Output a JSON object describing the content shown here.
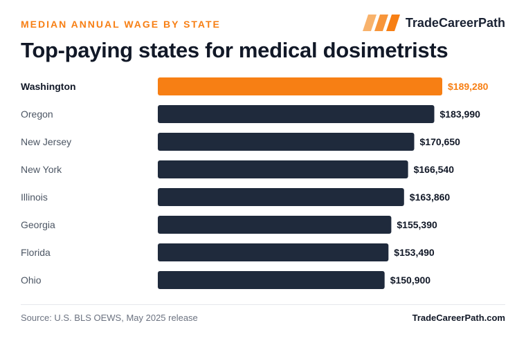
{
  "header": {
    "kicker": "MEDIAN ANNUAL WAGE BY STATE",
    "brand": "TradeCareerPath",
    "title": "Top-paying states for medical dosimetrists"
  },
  "footer": {
    "source": "Source: U.S. BLS OEWS, May 2025 release",
    "site": "TradeCareerPath.com"
  },
  "colors": {
    "highlight": "#f77f14",
    "bar": "#1f2a3c",
    "label_default": "#4b5563",
    "label_highlight": "#111827",
    "value_default": "#111827"
  },
  "chart_data": {
    "type": "bar",
    "orientation": "horizontal",
    "categories": [
      "Washington",
      "Oregon",
      "New Jersey",
      "New York",
      "Illinois",
      "Georgia",
      "Florida",
      "Ohio"
    ],
    "values": [
      189280,
      183990,
      170650,
      166540,
      163860,
      155390,
      153490,
      150900
    ],
    "value_labels": [
      "$189,280",
      "$183,990",
      "$170,650",
      "$166,540",
      "$163,860",
      "$155,390",
      "$153,490",
      "$150,900"
    ],
    "highlight_index": 0,
    "xlim": [
      0,
      189280
    ],
    "grid": false,
    "legend": "none"
  }
}
